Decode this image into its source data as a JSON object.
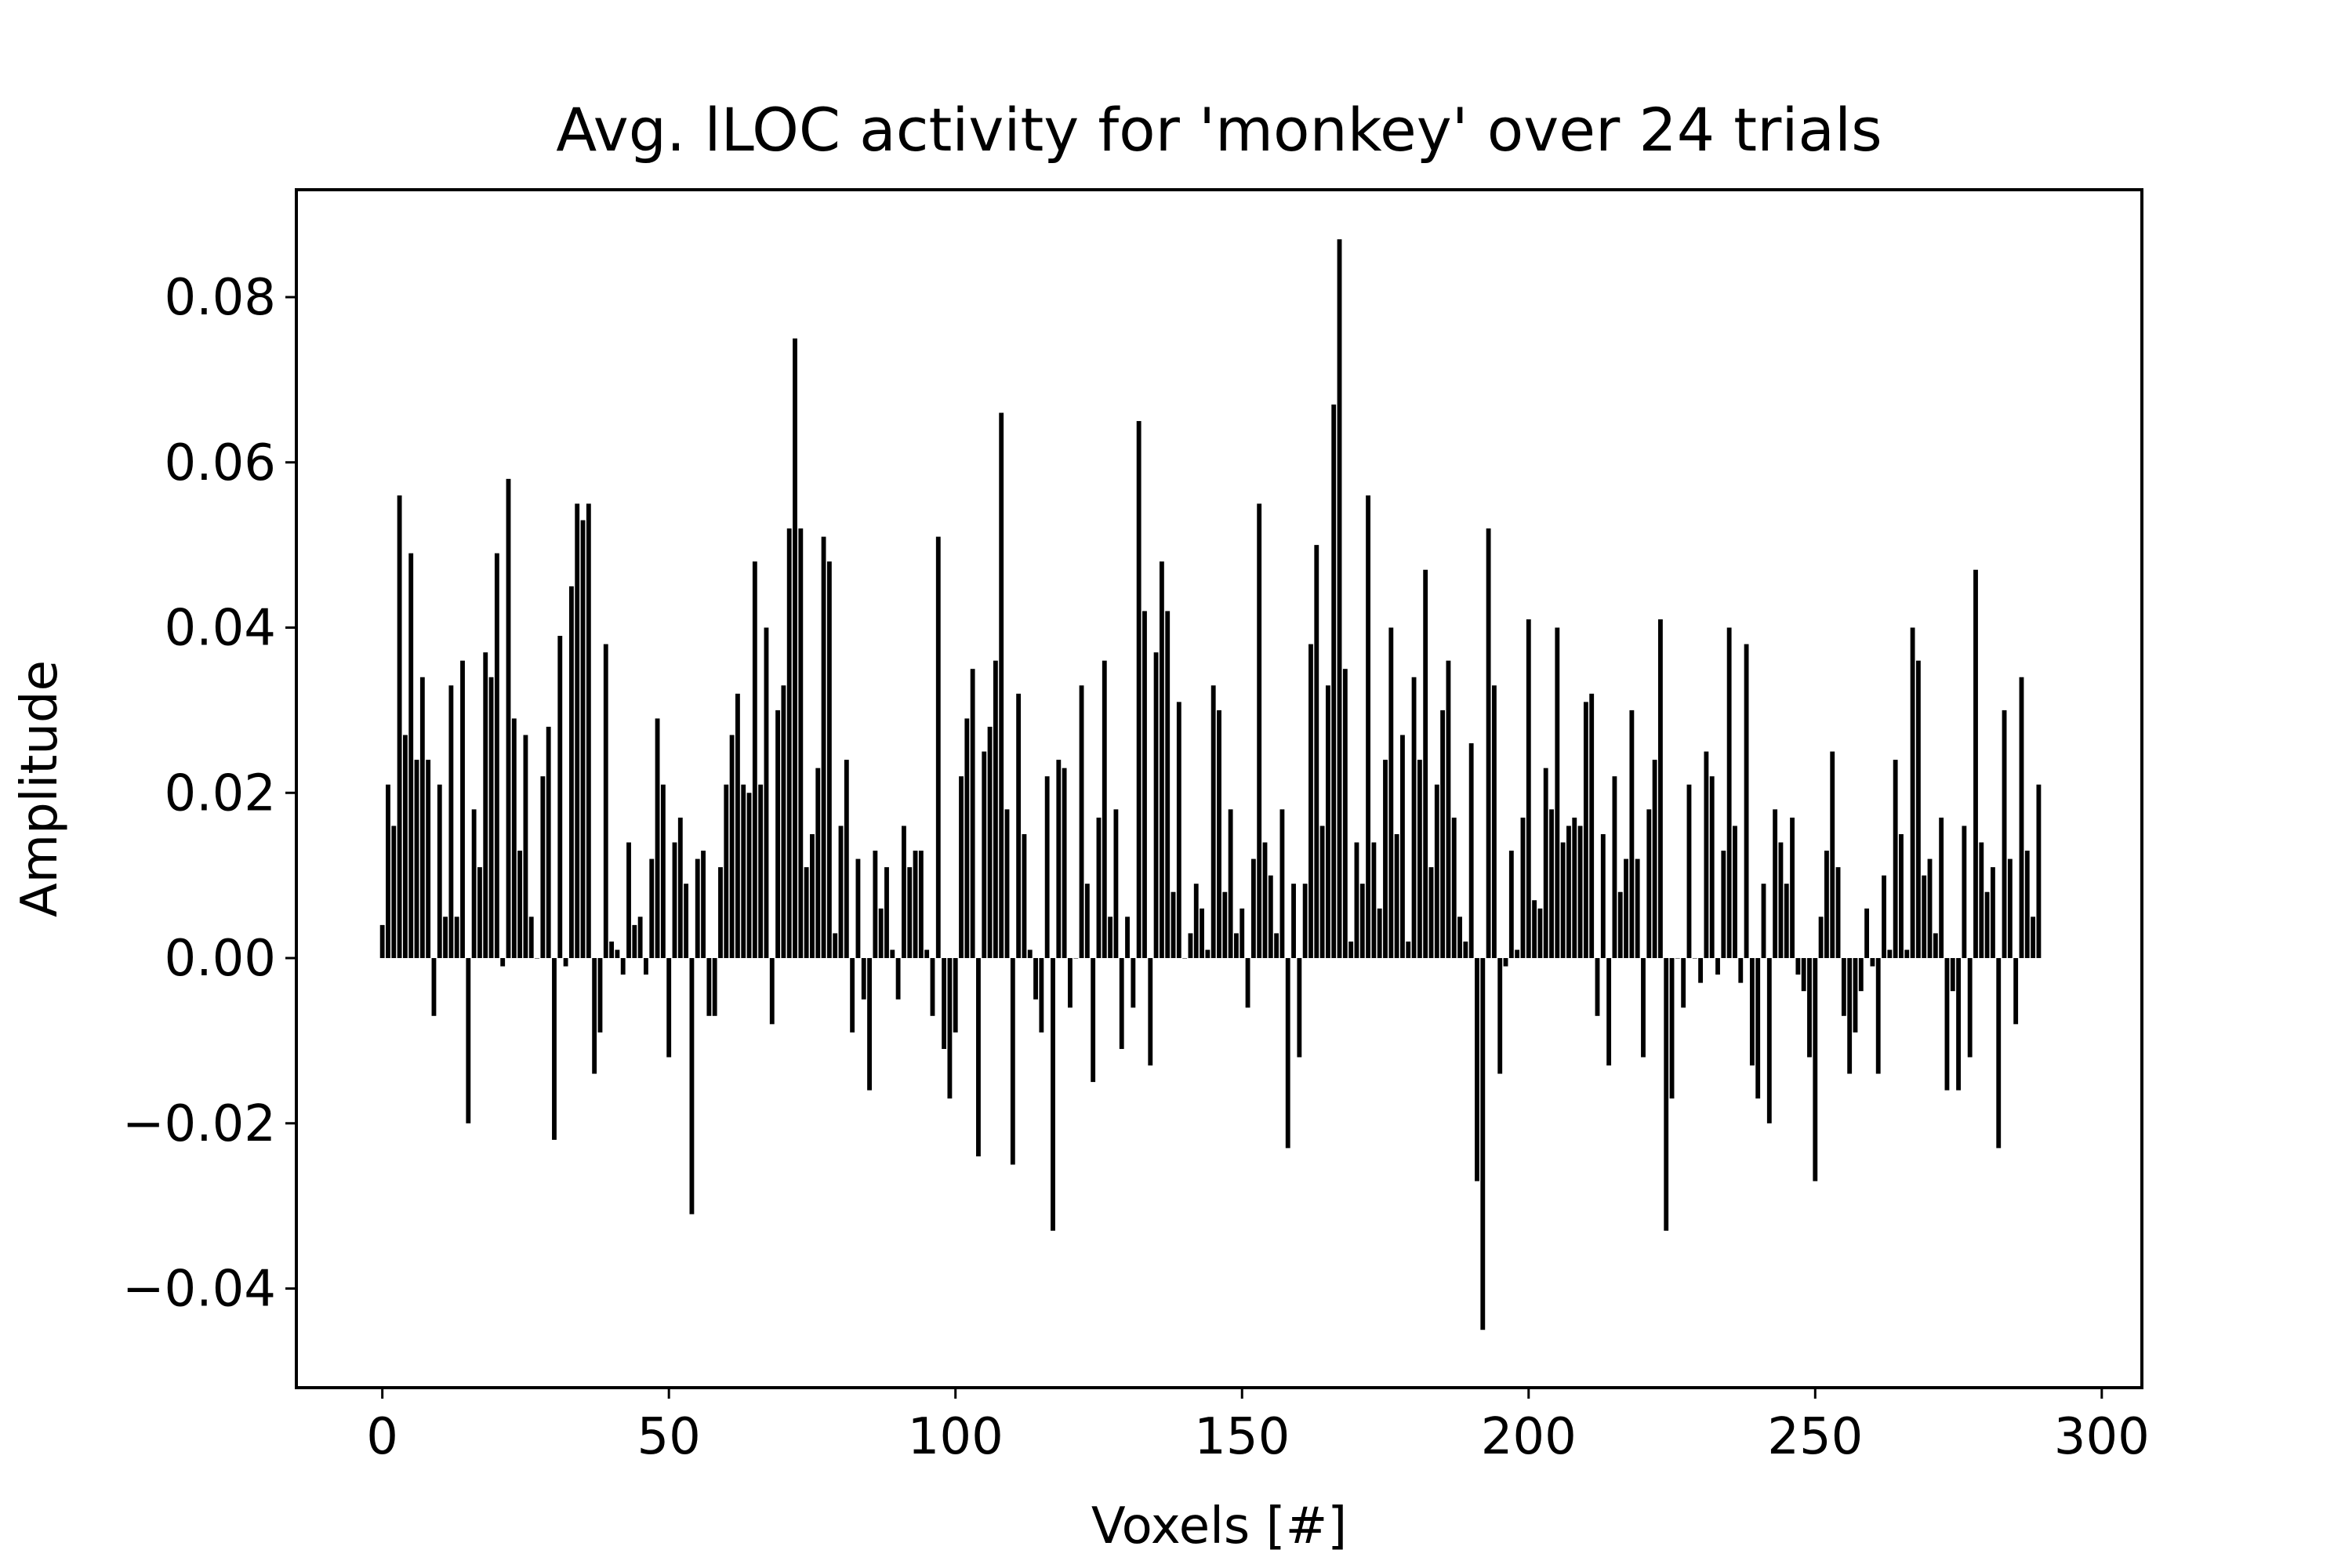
{
  "chart_data": {
    "type": "bar",
    "title": "Avg. lLOC activity for 'monkey' over 24 trials",
    "xlabel": "Voxels [#]",
    "ylabel": "Amplitude",
    "xlim": [
      -15,
      307
    ],
    "ylim": [
      -0.052,
      0.093
    ],
    "xticks": [
      0,
      50,
      100,
      150,
      200,
      250,
      300
    ],
    "xtick_labels": [
      "0",
      "50",
      "100",
      "150",
      "200",
      "250",
      "300"
    ],
    "yticks": [
      -0.04,
      -0.02,
      0.0,
      0.02,
      0.04,
      0.06,
      0.08
    ],
    "ytick_labels": [
      "−0.04",
      "−0.02",
      "0.00",
      "0.02",
      "0.04",
      "0.06",
      "0.08"
    ],
    "grid": false,
    "bar_color": "#000000",
    "x_start": 0,
    "values": [
      0.004,
      0.021,
      0.016,
      0.056,
      0.027,
      0.049,
      0.024,
      0.034,
      0.024,
      -0.007,
      0.021,
      0.005,
      0.033,
      0.005,
      0.036,
      -0.02,
      0.018,
      0.011,
      0.037,
      0.034,
      0.049,
      -0.001,
      0.058,
      0.029,
      0.013,
      0.027,
      0.005,
      0.0,
      0.022,
      0.028,
      -0.022,
      0.039,
      -0.001,
      0.045,
      0.055,
      0.053,
      0.055,
      -0.014,
      -0.009,
      0.038,
      0.002,
      0.001,
      -0.002,
      0.014,
      0.004,
      0.005,
      -0.002,
      0.012,
      0.029,
      0.021,
      -0.012,
      0.014,
      0.017,
      0.009,
      -0.031,
      0.012,
      0.013,
      -0.007,
      -0.007,
      0.011,
      0.021,
      0.027,
      0.032,
      0.021,
      0.02,
      0.048,
      0.021,
      0.04,
      -0.008,
      0.03,
      0.033,
      0.052,
      0.075,
      0.052,
      0.011,
      0.015,
      0.023,
      0.051,
      0.048,
      0.003,
      0.016,
      0.024,
      -0.009,
      0.012,
      -0.005,
      -0.016,
      0.013,
      0.006,
      0.011,
      0.001,
      -0.005,
      0.016,
      0.011,
      0.013,
      0.013,
      0.001,
      -0.007,
      0.051,
      -0.011,
      -0.017,
      -0.009,
      0.022,
      0.029,
      0.035,
      -0.024,
      0.025,
      0.028,
      0.036,
      0.066,
      0.018,
      -0.025,
      0.032,
      0.015,
      0.001,
      -0.005,
      -0.009,
      0.022,
      -0.033,
      0.024,
      0.023,
      -0.006,
      0.0,
      0.033,
      0.009,
      -0.015,
      0.017,
      0.036,
      0.005,
      0.018,
      -0.011,
      0.005,
      -0.006,
      0.065,
      0.042,
      -0.013,
      0.037,
      0.048,
      0.042,
      0.008,
      0.031,
      0.0,
      0.003,
      0.009,
      0.006,
      0.001,
      0.033,
      0.03,
      0.008,
      0.018,
      0.003,
      0.006,
      -0.006,
      0.012,
      0.055,
      0.014,
      0.01,
      0.003,
      0.018,
      -0.023,
      0.009,
      -0.012,
      0.009,
      0.038,
      0.05,
      0.016,
      0.033,
      0.067,
      0.087,
      0.035,
      0.002,
      0.014,
      0.009,
      0.056,
      0.014,
      0.006,
      0.024,
      0.04,
      0.015,
      0.027,
      0.002,
      0.034,
      0.024,
      0.047,
      0.011,
      0.021,
      0.03,
      0.036,
      0.017,
      0.005,
      0.002,
      0.026,
      -0.027,
      -0.045,
      0.052,
      0.033,
      -0.014,
      -0.001,
      0.013,
      0.001,
      0.017,
      0.041,
      0.007,
      0.006,
      0.023,
      0.018,
      0.04,
      0.014,
      0.016,
      0.017,
      0.016,
      0.031,
      0.032,
      -0.007,
      0.015,
      -0.013,
      0.022,
      0.008,
      0.012,
      0.03,
      0.012,
      -0.012,
      0.018,
      0.024,
      0.041,
      -0.033,
      -0.017,
      0.0,
      -0.006,
      0.021,
      0.0,
      -0.003,
      0.025,
      0.022,
      -0.002,
      0.013,
      0.04,
      0.016,
      -0.003,
      0.038,
      -0.013,
      -0.017,
      0.009,
      -0.02,
      0.018,
      0.014,
      0.009,
      0.017,
      -0.002,
      -0.004,
      -0.012,
      -0.027,
      0.005,
      0.013,
      0.025,
      0.011,
      -0.007,
      -0.014,
      -0.009,
      -0.004,
      0.006,
      -0.001,
      -0.014,
      0.01,
      0.001,
      0.024,
      0.015,
      0.001,
      0.04,
      0.036,
      0.01,
      0.012,
      0.003,
      0.017,
      -0.016,
      -0.004,
      -0.016,
      0.016,
      -0.012,
      0.047,
      0.014,
      0.008,
      0.011,
      -0.023,
      0.03,
      0.012,
      -0.008,
      0.034,
      0.013,
      0.005,
      0.021
    ]
  }
}
